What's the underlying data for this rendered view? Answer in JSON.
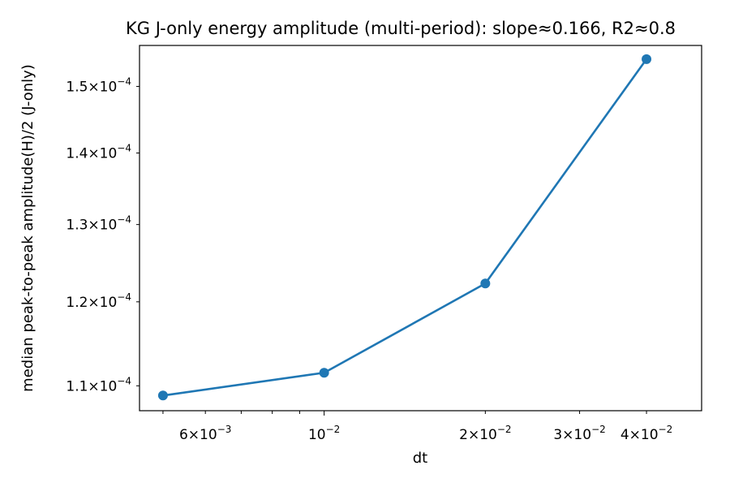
{
  "chart_data": {
    "type": "line",
    "title": "KG J-only energy amplitude (multi-period): slope≈0.166, R2≈0.8",
    "xlabel": "dt",
    "ylabel": "median peak-to-peak amplitude(H)/2 (J-only)",
    "xscale": "log",
    "yscale": "log",
    "xlim": [
      0.00452,
      0.0507
    ],
    "ylim": [
      0.0001072,
      0.0001565
    ],
    "grid": false,
    "legend": "none",
    "series": [
      {
        "x": [
          0.005,
          0.01,
          0.02,
          0.04
        ],
        "y": [
          0.0001089,
          0.0001115,
          0.0001223,
          0.0001543
        ],
        "color": "#1f77b4",
        "marker": "circle"
      }
    ],
    "x_major_ticks": [
      {
        "value": 0.01,
        "base": "10",
        "exp": "−2"
      }
    ],
    "x_minor_labeled_ticks": [
      {
        "value": 0.006,
        "mant": "6",
        "base": "10",
        "exp": "−3"
      },
      {
        "value": 0.02,
        "mant": "2",
        "base": "10",
        "exp": "−2"
      },
      {
        "value": 0.03,
        "mant": "3",
        "base": "10",
        "exp": "−2"
      },
      {
        "value": 0.04,
        "mant": "4",
        "base": "10",
        "exp": "−2"
      }
    ],
    "x_minor_unlabeled_ticks": [
      0.005,
      0.007,
      0.008,
      0.009
    ],
    "y_labeled_ticks": [
      {
        "value": 0.00011,
        "mant": "1.1",
        "base": "10",
        "exp": "−4"
      },
      {
        "value": 0.00012,
        "mant": "1.2",
        "base": "10",
        "exp": "−4"
      },
      {
        "value": 0.00013,
        "mant": "1.3",
        "base": "10",
        "exp": "−4"
      },
      {
        "value": 0.00014,
        "mant": "1.4",
        "base": "10",
        "exp": "−4"
      },
      {
        "value": 0.00015,
        "mant": "1.5",
        "base": "10",
        "exp": "−4"
      }
    ]
  }
}
